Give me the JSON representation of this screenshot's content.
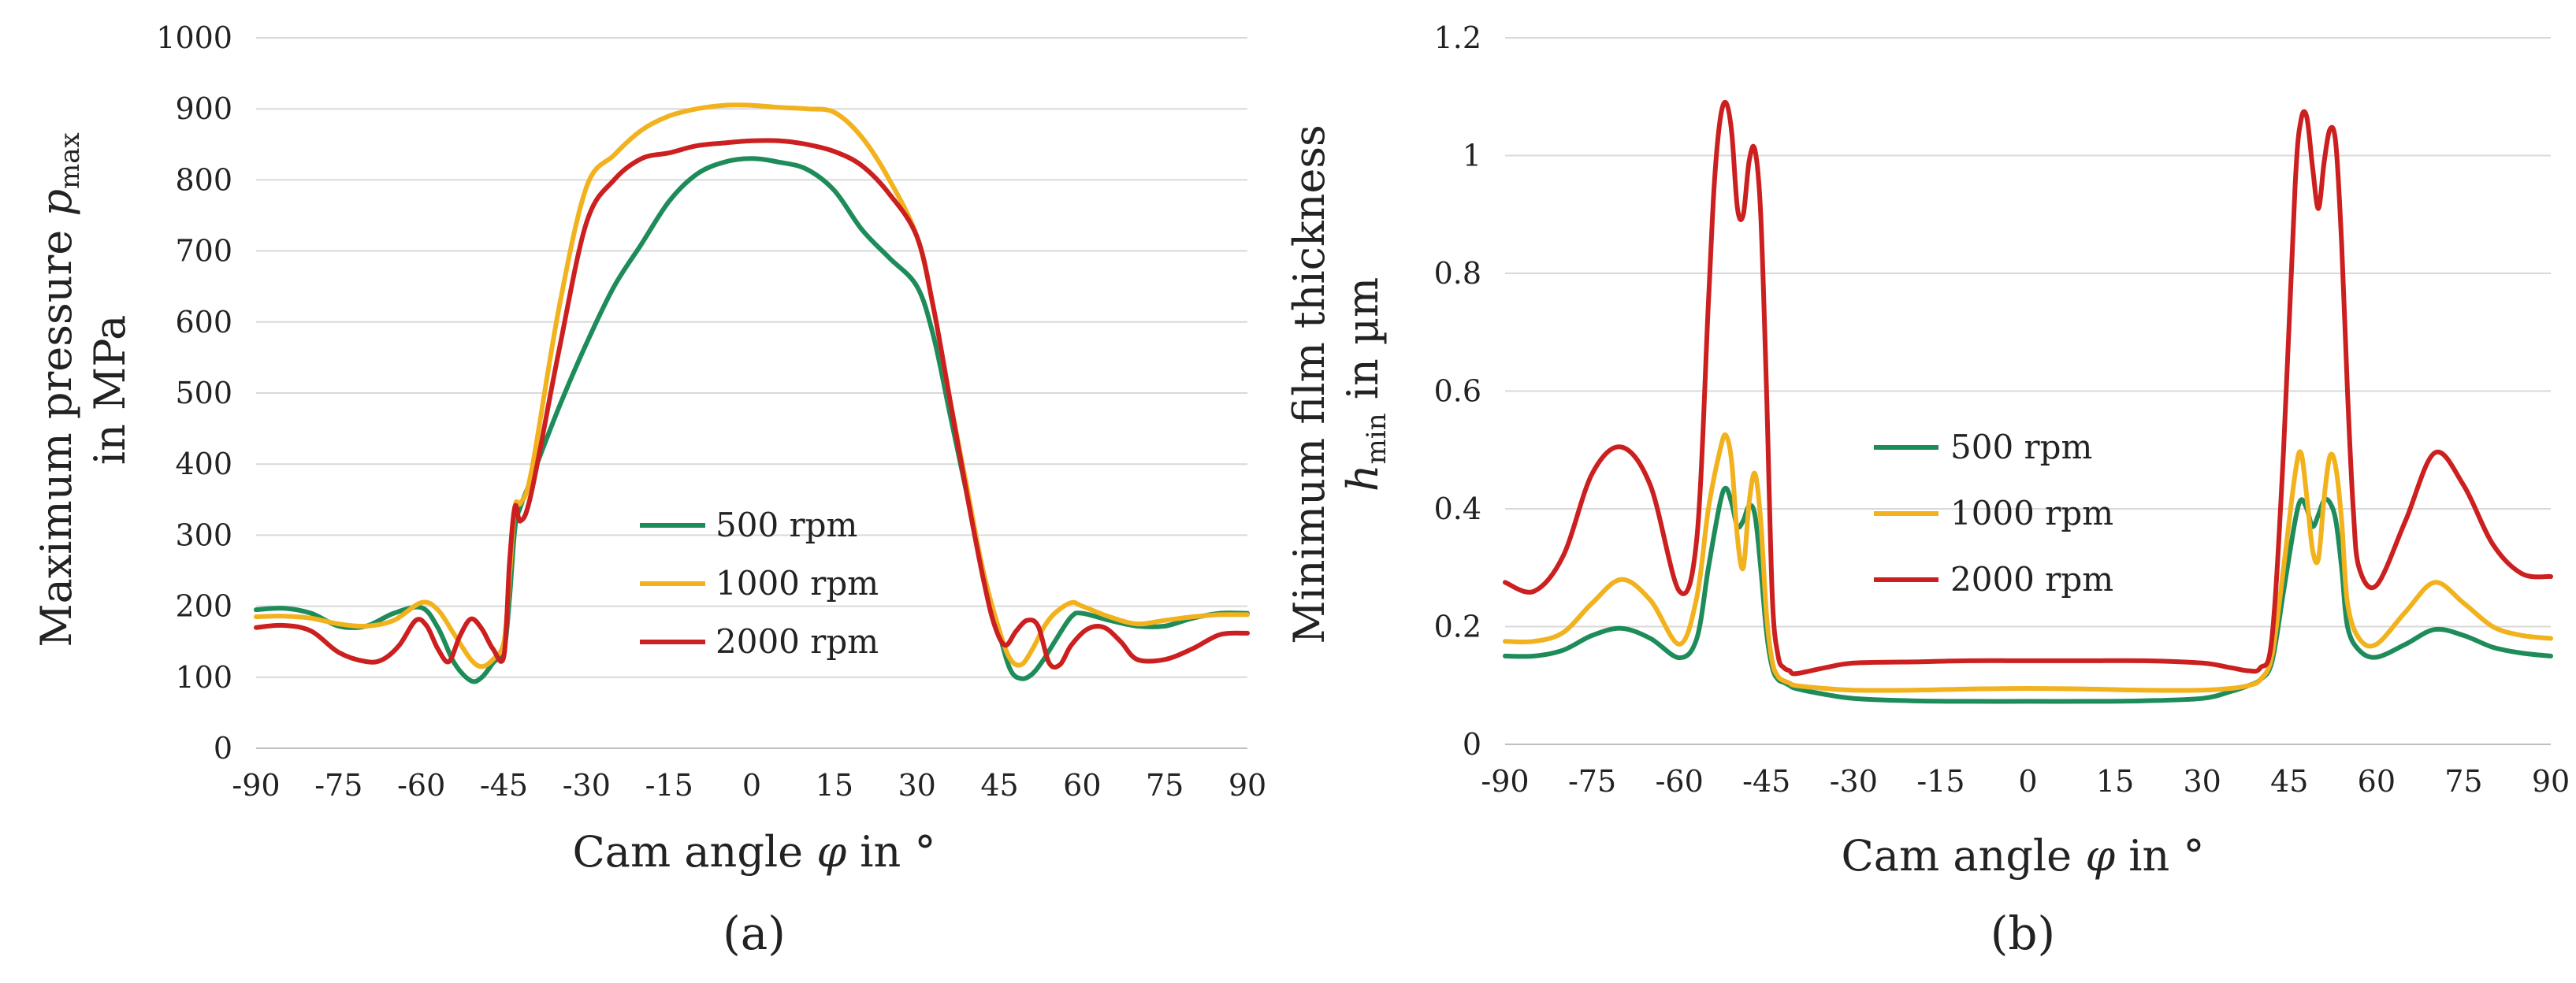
{
  "figure": {
    "series_colors": {
      "500 rpm": "#1e8c5a",
      "1000 rpm": "#f2b21e",
      "2000 rpm": "#cc1f1f"
    }
  },
  "chart_data": [
    {
      "type": "line",
      "subfigure_label": "(a)",
      "xlabel_prefix": "Cam angle ",
      "xlabel_symbol": "φ",
      "xlabel_suffix": " in °",
      "ylabel_line1_prefix": "Maximum pressure ",
      "ylabel_line1_symbol": "p",
      "ylabel_line1_subscript": "max",
      "ylabel_line2": "in MPa",
      "xlim": [
        -90,
        90
      ],
      "ylim": [
        0,
        1000
      ],
      "xticks": [
        -90,
        -75,
        -60,
        -45,
        -30,
        -15,
        0,
        15,
        30,
        45,
        60,
        75,
        90
      ],
      "yticks": [
        0,
        100,
        200,
        300,
        400,
        500,
        600,
        700,
        800,
        900,
        1000
      ],
      "grid": "horizontal",
      "legend": [
        "500 rpm",
        "1000 rpm",
        "2000 rpm"
      ],
      "legend_placement": "center-bottom",
      "series": [
        {
          "name": "500 rpm",
          "color": "#1e8c5a",
          "x": [
            -90,
            -85,
            -80,
            -75,
            -70,
            -65,
            -60,
            -57,
            -54,
            -51,
            -49,
            -47,
            -45,
            -44,
            -43,
            -42,
            -40,
            -35,
            -30,
            -25,
            -20,
            -15,
            -10,
            -5,
            0,
            5,
            10,
            15,
            20,
            25,
            30,
            33,
            36,
            39,
            42,
            45,
            47,
            49,
            51,
            53,
            55,
            58,
            60,
            65,
            70,
            75,
            80,
            85,
            90
          ],
          "y": [
            195,
            197,
            190,
            172,
            172,
            190,
            198,
            170,
            120,
            95,
            100,
            120,
            140,
            210,
            310,
            340,
            380,
            480,
            570,
            650,
            710,
            770,
            808,
            825,
            830,
            825,
            815,
            785,
            730,
            690,
            650,
            580,
            470,
            360,
            250,
            160,
            110,
            98,
            105,
            125,
            150,
            185,
            190,
            180,
            172,
            172,
            183,
            190,
            190
          ]
        },
        {
          "name": "1000 rpm",
          "color": "#f2b21e",
          "x": [
            -90,
            -85,
            -80,
            -75,
            -70,
            -65,
            -60,
            -57,
            -54,
            -51,
            -49,
            -47,
            -45,
            -44,
            -43,
            -42,
            -40,
            -35,
            -30,
            -25,
            -20,
            -15,
            -10,
            -5,
            0,
            5,
            10,
            15,
            20,
            25,
            30,
            33,
            36,
            39,
            42,
            45,
            47,
            49,
            51,
            53,
            55,
            58,
            60,
            65,
            70,
            75,
            80,
            85,
            90
          ],
          "y": [
            185,
            186,
            183,
            175,
            172,
            180,
            205,
            195,
            160,
            125,
            115,
            125,
            150,
            240,
            340,
            345,
            390,
            620,
            790,
            835,
            870,
            890,
            900,
            905,
            905,
            902,
            900,
            895,
            860,
            800,
            720,
            620,
            490,
            370,
            250,
            165,
            125,
            118,
            140,
            170,
            190,
            205,
            200,
            185,
            175,
            180,
            185,
            188,
            188
          ]
        },
        {
          "name": "2000 rpm",
          "color": "#cc1f1f",
          "x": [
            -90,
            -85,
            -80,
            -75,
            -70,
            -67,
            -64,
            -61,
            -59,
            -57,
            -55,
            -53,
            -51,
            -49,
            -47,
            -45,
            -44,
            -43,
            -42,
            -40,
            -35,
            -30,
            -25,
            -20,
            -15,
            -10,
            -5,
            0,
            5,
            10,
            15,
            20,
            25,
            30,
            33,
            36,
            39,
            42,
            44,
            46,
            48,
            50,
            52,
            54,
            56,
            58,
            61,
            64,
            67,
            70,
            75,
            80,
            85,
            90
          ],
          "y": [
            170,
            173,
            165,
            135,
            122,
            125,
            145,
            180,
            172,
            140,
            122,
            158,
            182,
            168,
            140,
            130,
            260,
            340,
            320,
            360,
            560,
            740,
            800,
            830,
            838,
            848,
            852,
            855,
            855,
            850,
            840,
            820,
            780,
            720,
            620,
            490,
            360,
            240,
            175,
            145,
            165,
            180,
            172,
            120,
            118,
            145,
            168,
            170,
            150,
            125,
            125,
            140,
            160,
            162
          ]
        }
      ]
    },
    {
      "type": "line",
      "subfigure_label": "(b)",
      "xlabel_prefix": "Cam angle ",
      "xlabel_symbol": "φ",
      "xlabel_suffix": " in °",
      "ylabel_line1": "Minimum film thickness",
      "ylabel_line2_symbol": "h",
      "ylabel_line2_subscript": "min",
      "ylabel_line2_suffix": " in µm",
      "xlim": [
        -90,
        90
      ],
      "ylim": [
        0,
        1.2
      ],
      "xticks": [
        -90,
        -75,
        -60,
        -45,
        -30,
        -15,
        0,
        15,
        30,
        45,
        60,
        75,
        90
      ],
      "yticks": [
        0,
        0.2,
        0.4,
        0.6,
        0.8,
        1,
        1.2
      ],
      "ytick_labels": [
        "0",
        "0.2",
        "0.4",
        "0.6",
        "0.8",
        "1",
        "1.2"
      ],
      "grid": "horizontal",
      "legend": [
        "500 rpm",
        "1000 rpm",
        "2000 rpm"
      ],
      "legend_placement": "center-left",
      "series": [
        {
          "name": "500 rpm",
          "color": "#1e8c5a",
          "x": [
            -90,
            -85,
            -80,
            -75,
            -70,
            -65,
            -60,
            -57,
            -55,
            -53,
            -52,
            -51,
            -50,
            -49,
            -48,
            -47,
            -46,
            -45,
            -44,
            -43,
            -42,
            -41,
            -40,
            -35,
            -30,
            -20,
            -10,
            0,
            10,
            20,
            30,
            35,
            38,
            40,
            42,
            44,
            46,
            47,
            48,
            49,
            50,
            51,
            52,
            53,
            54,
            55,
            57,
            60,
            65,
            70,
            75,
            80,
            85,
            90
          ],
          "x_note": "",
          "y": [
            0.15,
            0.15,
            0.16,
            0.185,
            0.197,
            0.18,
            0.147,
            0.18,
            0.3,
            0.41,
            0.435,
            0.41,
            0.37,
            0.38,
            0.405,
            0.39,
            0.3,
            0.19,
            0.13,
            0.11,
            0.105,
            0.1,
            0.095,
            0.085,
            0.078,
            0.074,
            0.073,
            0.073,
            0.073,
            0.074,
            0.078,
            0.09,
            0.1,
            0.11,
            0.14,
            0.26,
            0.38,
            0.415,
            0.4,
            0.37,
            0.39,
            0.415,
            0.41,
            0.38,
            0.3,
            0.2,
            0.16,
            0.148,
            0.17,
            0.195,
            0.185,
            0.165,
            0.155,
            0.15
          ]
        },
        {
          "name": "1000 rpm",
          "color": "#f2b21e",
          "x": [
            -90,
            -85,
            -80,
            -75,
            -70,
            -65,
            -60,
            -57,
            -55,
            -53,
            -52,
            -51,
            -50,
            -49,
            -48,
            -47,
            -46,
            -45,
            -44,
            -43,
            -42,
            -41,
            -40,
            -35,
            -30,
            -20,
            -10,
            0,
            10,
            20,
            30,
            35,
            38,
            40,
            42,
            44,
            46,
            47,
            48,
            49,
            50,
            51,
            52,
            53,
            54,
            55,
            57,
            60,
            65,
            70,
            75,
            80,
            85,
            90
          ],
          "y": [
            0.175,
            0.175,
            0.19,
            0.24,
            0.28,
            0.245,
            0.17,
            0.25,
            0.4,
            0.5,
            0.525,
            0.48,
            0.35,
            0.3,
            0.41,
            0.46,
            0.38,
            0.22,
            0.14,
            0.115,
            0.108,
            0.104,
            0.1,
            0.095,
            0.092,
            0.092,
            0.094,
            0.095,
            0.094,
            0.092,
            0.092,
            0.095,
            0.1,
            0.11,
            0.15,
            0.3,
            0.46,
            0.495,
            0.42,
            0.33,
            0.315,
            0.42,
            0.49,
            0.47,
            0.38,
            0.24,
            0.18,
            0.17,
            0.225,
            0.275,
            0.24,
            0.2,
            0.185,
            0.18
          ]
        },
        {
          "name": "2000 rpm",
          "color": "#cc1f1f",
          "x": [
            -90,
            -85,
            -80,
            -75,
            -70,
            -65,
            -60,
            -57,
            -55,
            -54,
            -53,
            -52,
            -51,
            -50,
            -49,
            -48,
            -47,
            -46,
            -45,
            -44,
            -43,
            -42,
            -41,
            -40,
            -35,
            -30,
            -20,
            -10,
            0,
            10,
            20,
            30,
            35,
            38,
            40,
            42,
            44,
            46,
            47,
            48,
            49,
            50,
            51,
            52,
            53,
            54,
            55,
            56,
            57,
            60,
            65,
            70,
            75,
            80,
            85,
            90
          ],
          "y": [
            0.275,
            0.26,
            0.32,
            0.46,
            0.505,
            0.44,
            0.26,
            0.35,
            0.75,
            0.95,
            1.06,
            1.09,
            1.04,
            0.91,
            0.9,
            0.99,
            1.01,
            0.9,
            0.6,
            0.25,
            0.15,
            0.13,
            0.125,
            0.12,
            0.13,
            0.138,
            0.14,
            0.142,
            0.142,
            0.142,
            0.142,
            0.138,
            0.13,
            0.125,
            0.13,
            0.18,
            0.5,
            0.95,
            1.06,
            1.065,
            0.98,
            0.91,
            0.99,
            1.045,
            1.02,
            0.85,
            0.6,
            0.4,
            0.3,
            0.27,
            0.38,
            0.495,
            0.44,
            0.34,
            0.29,
            0.285
          ]
        }
      ]
    }
  ],
  "legend_a": {
    "items": [
      "500 rpm",
      "1000 rpm",
      "2000 rpm"
    ]
  },
  "legend_b": {
    "items": [
      "500 rpm",
      "1000 rpm",
      "2000 rpm"
    ]
  }
}
